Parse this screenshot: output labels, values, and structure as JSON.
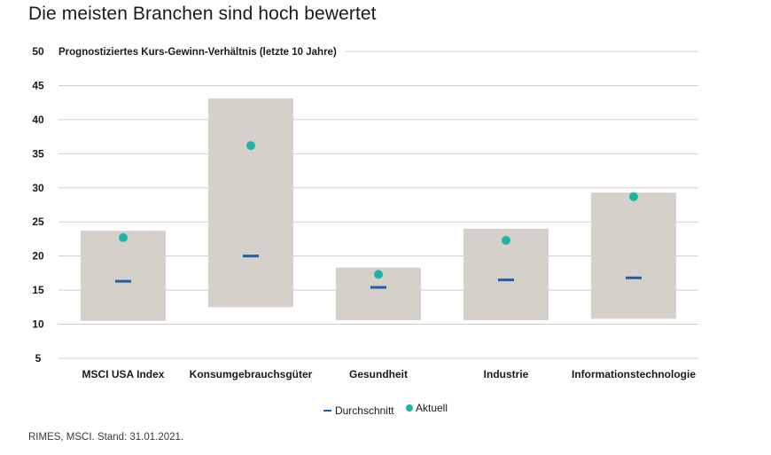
{
  "title": "Die meisten Branchen sind hoch bewertet",
  "source": "RIMES, MSCI. Stand: 31.01.2021.",
  "colors": {
    "range_box": "#d5d0ca",
    "average_marker": "#1f5fa3",
    "current_marker": "#1fb3a6",
    "gridline": "#cfcfcf"
  },
  "chart_data": {
    "type": "range-box with markers",
    "subtitle": "Prognostiziertes Kurs-Gewinn-Verhältnis (letzte 10 Jahre)",
    "categories": [
      "MSCI USA Index",
      "Konsumgebrauchsgüter",
      "Gesundheit",
      "Industrie",
      "Informationstechnologie"
    ],
    "range_low": [
      10.5,
      12.5,
      10.6,
      10.6,
      10.8
    ],
    "range_high": [
      23.7,
      43.1,
      18.3,
      24.0,
      29.3
    ],
    "series": [
      {
        "name": "Durchschnitt",
        "values": [
          16.3,
          20.0,
          15.4,
          16.5,
          16.8
        ]
      },
      {
        "name": "Aktuell",
        "values": [
          22.7,
          36.2,
          17.3,
          22.3,
          28.7
        ]
      }
    ],
    "ylim": [
      5,
      50
    ],
    "yticks": [
      50,
      45,
      40,
      35,
      30,
      25,
      20,
      15,
      10,
      5
    ],
    "grid": true,
    "legend_position": "bottom-center"
  }
}
